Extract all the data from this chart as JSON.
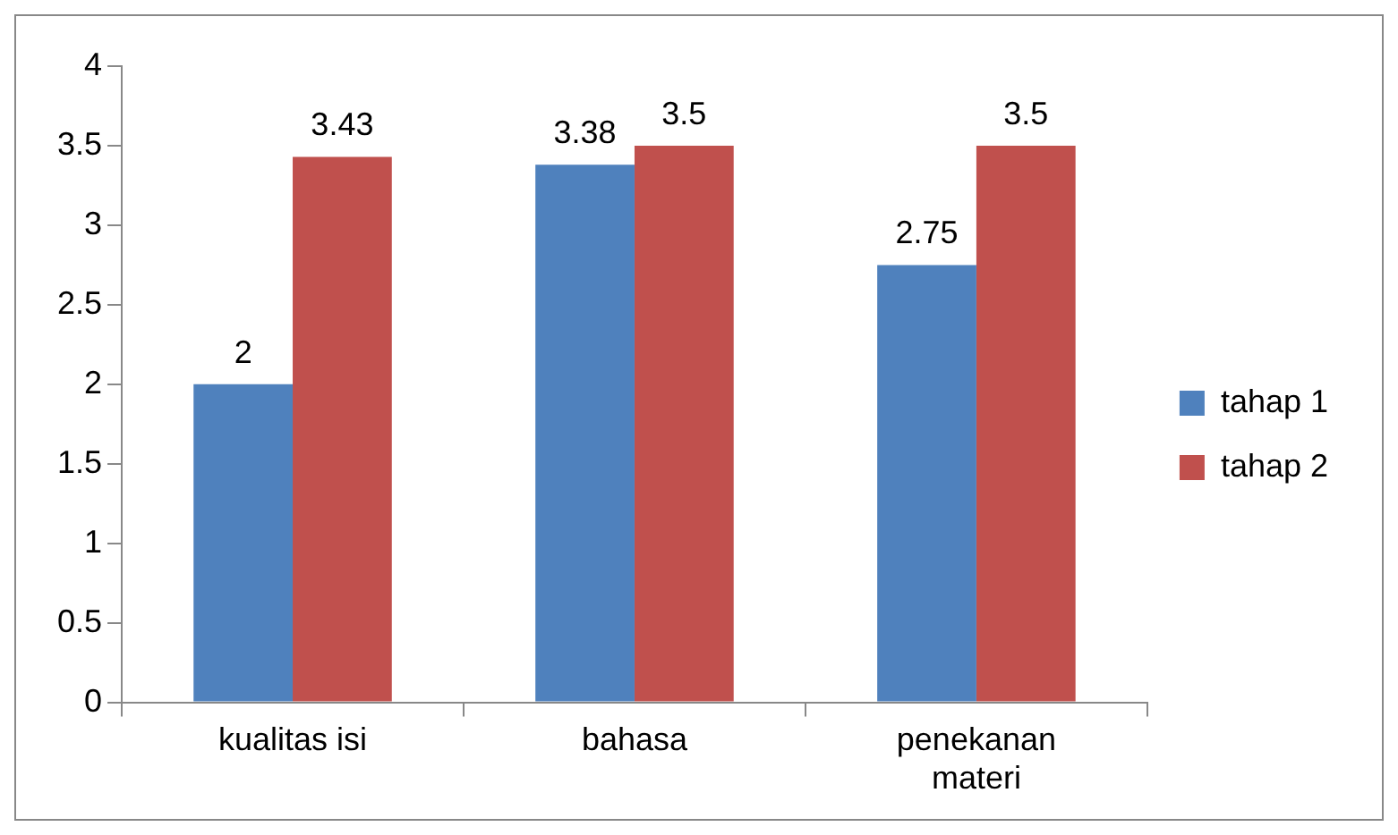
{
  "chart_data": {
    "type": "bar",
    "categories": [
      "kualitas isi",
      "bahasa",
      "penekanan materi"
    ],
    "series": [
      {
        "name": "tahap 1",
        "color": "#4f81bd",
        "values": [
          2,
          3.38,
          2.75
        ]
      },
      {
        "name": "tahap 2",
        "color": "#c0504d",
        "values": [
          3.43,
          3.5,
          3.5
        ]
      }
    ],
    "ylim": [
      0,
      4
    ],
    "yticks": [
      0,
      0.5,
      1,
      1.5,
      2,
      2.5,
      3,
      3.5,
      4
    ],
    "grid": false,
    "legend": "right",
    "data_labels": true
  }
}
